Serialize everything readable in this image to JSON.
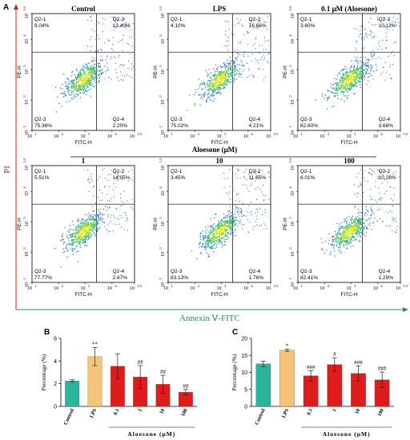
{
  "figure": {
    "panel_a_label": "A",
    "panel_b_label": "B",
    "panel_c_label": "C",
    "y_axis_label": "PI",
    "x_axis_label": "Annexin Ⅴ-FITC",
    "aloesone_header": "Aloesone (μM)",
    "flow_axis_x": "FITC-H",
    "flow_axis_y": "PE-H",
    "colors": {
      "red_axis": "#cc2222",
      "green_axis": "#2e8b57",
      "control_bar": "#2ab49a",
      "lps_bar": "#f7c27a",
      "aloesone_bar": "#e01b1b",
      "error": "#222222"
    }
  },
  "flow_panels": [
    {
      "title": "Control",
      "q1_label": "Q2-1",
      "q1": "9.04%",
      "q2_label": "Q2-2",
      "q2": "13.40%",
      "q3_label": "Q2-3",
      "q3": "75.36%",
      "q4_label": "Q2-4",
      "q4": "2.20%"
    },
    {
      "title": "LPS",
      "q1_label": "Q2-1",
      "q1": "4.10%",
      "q2_label": "Q2-2",
      "q2": "16.66%",
      "q3_label": "Q2-3",
      "q3": "75.02%",
      "q4_label": "Q2-4",
      "q4": "4.21%"
    },
    {
      "title": "0.1 μM (Aloesone)",
      "q1_label": "Q2-1",
      "q1": "3.60%",
      "q2_label": "Q2-2",
      "q2": "10.12%",
      "q3_label": "Q2-3",
      "q3": "82.60%",
      "q4_label": "Q2-4",
      "q4": "3.68%"
    },
    {
      "title": "1",
      "q1_label": "Q2-1",
      "q1": "5.51%",
      "q2_label": "Q2-2",
      "q2": "14.05%",
      "q3_label": "Q2-3",
      "q3": "77.77%",
      "q4_label": "Q2-4",
      "q4": "2.67%"
    },
    {
      "title": "10",
      "q1_label": "Q2-1",
      "q1": "3.45%",
      "q2_label": "Q2-2",
      "q2": "11.65%",
      "q3_label": "Q2-3",
      "q3": "83.13%",
      "q4_label": "Q2-4",
      "q4": "1.76%"
    },
    {
      "title": "100",
      "q1_label": "Q2-1",
      "q1": "6.01%",
      "q2_label": "Q2-2",
      "q2": "10.28%",
      "q3_label": "Q2-3",
      "q3": "82.41%",
      "q4_label": "Q2-4",
      "q4": "1.29%"
    }
  ],
  "flow_ticks": {
    "x": [
      "10",
      "10",
      "10",
      "10",
      "10"
    ],
    "x_exp": [
      "1",
      "2",
      "3",
      "4",
      "5.5"
    ],
    "y": [
      "10",
      "10",
      "10",
      "10",
      "10"
    ],
    "y_exp": [
      "1",
      "2",
      "3",
      "4",
      "5.5"
    ]
  },
  "chart_data": [
    {
      "type": "bar",
      "panel": "B",
      "ylabel": "Percentage (%)",
      "xlabel": "Aloesone (μM)",
      "categories": [
        "Control",
        "LPS",
        "0.1",
        "1",
        "10",
        "100"
      ],
      "values": [
        2.25,
        4.4,
        3.55,
        2.6,
        1.95,
        1.25
      ],
      "errors": [
        0.1,
        0.8,
        1.1,
        1.0,
        0.8,
        0.25
      ],
      "ylim": [
        0,
        6
      ],
      "yticks": [
        "0",
        "2",
        "4",
        "6"
      ],
      "annotations": [
        "",
        "**",
        "",
        "##",
        "##",
        "##"
      ]
    },
    {
      "type": "bar",
      "panel": "C",
      "ylabel": "Percentage (%)",
      "xlabel": "Aloesone (μM)",
      "categories": [
        "Control",
        "LPS",
        "0.1",
        "1",
        "10",
        "100"
      ],
      "values": [
        12.5,
        16.5,
        9.0,
        12.3,
        9.7,
        7.8
      ],
      "errors": [
        0.8,
        0.3,
        1.5,
        2.0,
        2.2,
        2.3
      ],
      "ylim": [
        0,
        20
      ],
      "yticks": [
        "0",
        "5",
        "10",
        "15",
        "20"
      ],
      "annotations": [
        "",
        "*",
        "###",
        "#",
        "###",
        "###"
      ]
    }
  ]
}
